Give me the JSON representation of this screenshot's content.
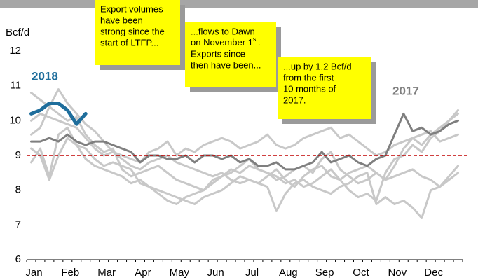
{
  "chart_data": {
    "type": "line",
    "y_label": "Bcf/d",
    "ylim": [
      6,
      12
    ],
    "yticks": [
      6,
      7,
      8,
      9,
      10,
      11,
      12
    ],
    "categories": [
      "Jan",
      null,
      null,
      null,
      "Feb",
      null,
      null,
      null,
      "Mar",
      null,
      null,
      null,
      "Apr",
      null,
      null,
      null,
      "May",
      null,
      null,
      null,
      "Jun",
      null,
      null,
      null,
      "Jul",
      null,
      null,
      null,
      "Aug",
      null,
      null,
      null,
      "Sep",
      null,
      null,
      null,
      "Oct",
      null,
      null,
      null,
      "Nov",
      null,
      null,
      null,
      "Dec",
      null,
      null,
      null
    ],
    "reference_line": {
      "value": 9,
      "color": "#c00000"
    },
    "series": [
      {
        "color": "#c8c8c8",
        "line_width": 3,
        "values": [
          10.8,
          10.6,
          10.4,
          10.9,
          10.5,
          10.2,
          9.9,
          9.7,
          9.4,
          9.1,
          8.9,
          8.7,
          8.6,
          8.8,
          8.9,
          9.0,
          8.8,
          8.7,
          8.6,
          8.5,
          8.4,
          8.5,
          8.3,
          8.2,
          8.3,
          8.2,
          8.4,
          8.6,
          8.3,
          8.1,
          8.4,
          8.6,
          8.7,
          8.4,
          8.3,
          8.5,
          8.6,
          8.7,
          8.5,
          8.3,
          8.7,
          9.2,
          9.5,
          9.3,
          9.6,
          9.8,
          10.0,
          10.3
        ]
      },
      {
        "color": "#c8c8c8",
        "line_width": 3,
        "values": [
          8.8,
          9.2,
          8.4,
          9.6,
          9.8,
          9.3,
          8.9,
          8.7,
          8.6,
          8.5,
          8.4,
          8.2,
          8.3,
          8.1,
          8.0,
          7.9,
          7.8,
          7.7,
          7.6,
          7.8,
          7.9,
          8.0,
          8.2,
          8.4,
          8.3,
          8.2,
          8.1,
          7.4,
          7.9,
          8.2,
          8.3,
          8.1,
          8.0,
          7.9,
          8.1,
          8.2,
          8.4,
          8.5,
          7.6,
          7.8,
          7.6,
          7.7,
          7.5,
          7.2,
          8.0,
          8.1,
          8.4,
          8.7
        ]
      },
      {
        "color": "#c8c8c8",
        "line_width": 3,
        "values": [
          10.0,
          10.2,
          10.1,
          10.0,
          9.9,
          9.8,
          9.5,
          9.2,
          9.0,
          9.1,
          9.0,
          8.9,
          8.8,
          9.1,
          9.2,
          9.4,
          9.0,
          9.2,
          9.1,
          9.3,
          9.4,
          9.5,
          9.4,
          9.2,
          9.3,
          9.4,
          9.6,
          9.3,
          9.2,
          9.3,
          9.5,
          9.6,
          9.7,
          9.8,
          9.5,
          9.6,
          9.4,
          9.2,
          9.0,
          9.1,
          9.3,
          9.4,
          9.5,
          9.6,
          9.7,
          9.4,
          9.5,
          9.6
        ]
      },
      {
        "color": "#c8c8c8",
        "line_width": 3,
        "values": [
          9.6,
          9.8,
          10.4,
          10.2,
          10.0,
          10.1,
          9.6,
          9.3,
          9.1,
          9.2,
          8.6,
          8.4,
          8.5,
          8.6,
          8.7,
          8.5,
          8.3,
          8.2,
          8.1,
          8.0,
          8.2,
          8.4,
          8.6,
          8.5,
          8.7,
          8.6,
          8.5,
          8.4,
          8.2,
          8.3,
          8.1,
          8.2,
          8.4,
          8.6,
          8.3,
          8.0,
          7.8,
          7.9,
          7.7,
          8.5,
          8.9,
          9.0,
          9.3,
          9.1,
          9.5,
          9.7,
          10.0,
          10.2
        ]
      },
      {
        "color": "#c8c8c8",
        "line_width": 3,
        "values": [
          9.2,
          9.0,
          8.3,
          9.0,
          9.5,
          9.3,
          9.2,
          8.9,
          8.7,
          8.8,
          8.7,
          8.6,
          8.2,
          8.1,
          7.9,
          7.7,
          7.6,
          7.8,
          7.9,
          8.0,
          8.3,
          8.4,
          8.5,
          8.7,
          8.9,
          8.6,
          8.5,
          8.3,
          8.4,
          8.6,
          8.7,
          8.5,
          8.9,
          9.1,
          8.6,
          8.4,
          8.2,
          8.3,
          8.5,
          8.3,
          8.4,
          8.5,
          8.6,
          8.4,
          8.3,
          8.1,
          8.3,
          8.5
        ]
      },
      {
        "name": "2017",
        "color": "#7f7f7f",
        "line_width": 3,
        "values": [
          9.4,
          9.4,
          9.5,
          9.4,
          9.6,
          9.4,
          9.3,
          9.4,
          9.4,
          9.3,
          9.2,
          9.1,
          8.8,
          9.0,
          9.0,
          8.9,
          8.9,
          9.0,
          8.8,
          9.0,
          9.0,
          8.9,
          9.0,
          8.8,
          8.9,
          8.7,
          8.7,
          8.8,
          8.6,
          8.6,
          8.7,
          8.8,
          9.1,
          8.8,
          8.9,
          9.0,
          8.8,
          8.7,
          8.9,
          9.0,
          9.6,
          10.2,
          9.7,
          9.8,
          9.6,
          9.7,
          9.9,
          10.0
        ]
      },
      {
        "name": "2018",
        "color": "#1f6e9c",
        "line_width": 5,
        "values": [
          10.2,
          10.3,
          10.5,
          10.5,
          10.3,
          9.9,
          10.2,
          null,
          null,
          null,
          null,
          null,
          null,
          null,
          null,
          null,
          null,
          null,
          null,
          null,
          null,
          null,
          null,
          null,
          null,
          null,
          null,
          null,
          null,
          null,
          null,
          null,
          null,
          null,
          null,
          null,
          null,
          null,
          null,
          null,
          null,
          null,
          null,
          null,
          null,
          null,
          null,
          null
        ]
      }
    ],
    "annotations": [
      {
        "lines": [
          "Export volumes",
          "have been",
          "strong since the",
          "start of LTFP..."
        ]
      },
      {
        "lines": [
          "...flows to Dawn",
          {
            "text": "on November 1",
            "sup": "st",
            "tail": "."
          },
          "Exports since",
          "then have been..."
        ]
      },
      {
        "lines": [
          "...up by 1.2 Bcf/d",
          "from the first",
          "10 months of",
          "2017."
        ]
      }
    ]
  }
}
